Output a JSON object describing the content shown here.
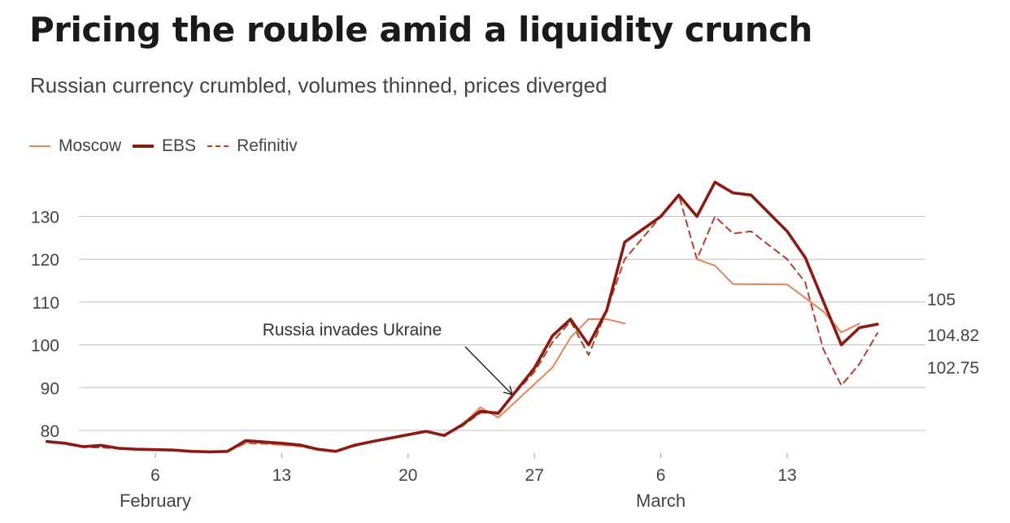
{
  "chart_data": {
    "type": "line",
    "title": "Pricing the rouble amid a liquidity crunch",
    "subtitle": "Russian currency crumbled, volumes thinned, prices diverged",
    "xlabel": "",
    "ylabel": "",
    "ylim": [
      73,
      140
    ],
    "yticks": [
      80,
      90,
      100,
      110,
      120,
      130
    ],
    "xrange": [
      -3,
      41
    ],
    "xticks": [
      {
        "x": 5,
        "label": "6"
      },
      {
        "x": 12,
        "label": "13"
      },
      {
        "x": 19,
        "label": "20"
      },
      {
        "x": 26,
        "label": "27"
      },
      {
        "x": 33,
        "label": "6"
      },
      {
        "x": 40,
        "label": "13"
      }
    ],
    "months": [
      {
        "x": 5,
        "label": "February"
      },
      {
        "x": 33,
        "label": "March"
      }
    ],
    "grid": true,
    "legend_position": "top-left",
    "series": [
      {
        "name": "Moscow",
        "style": "thin",
        "color": "#e8825a",
        "points": [
          [
            -1,
            77.4
          ],
          [
            0,
            77
          ],
          [
            1,
            76.2
          ],
          [
            2,
            76.4
          ],
          [
            3,
            75.8
          ],
          [
            4,
            75.6
          ],
          [
            5,
            75.5
          ],
          [
            6,
            75.4
          ],
          [
            7,
            75.1
          ],
          [
            8,
            75
          ],
          [
            9,
            75.1
          ],
          [
            10,
            77.2
          ],
          [
            11,
            77.1
          ],
          [
            12,
            76.6
          ],
          [
            13,
            76.4
          ],
          [
            14,
            75.6
          ],
          [
            15,
            75.2
          ],
          [
            16,
            76.4
          ],
          [
            17,
            77.3
          ],
          [
            18,
            78
          ],
          [
            19,
            78.9
          ],
          [
            20,
            79.8
          ],
          [
            21,
            78.8
          ],
          [
            22,
            81.2
          ],
          [
            23,
            85.4
          ],
          [
            24,
            83
          ],
          [
            27,
            94.7
          ],
          [
            28,
            101.7
          ],
          [
            29,
            106
          ],
          [
            30,
            106
          ],
          [
            31,
            105
          ]
        ],
        "points2": [
          [
            35,
            120
          ],
          [
            36,
            118.5
          ],
          [
            37,
            114.2
          ],
          [
            40,
            114.1
          ],
          [
            42,
            107.8
          ],
          [
            43,
            102.9
          ],
          [
            44,
            105
          ]
        ]
      },
      {
        "name": "EBS",
        "style": "thick",
        "color": "#8b1a10",
        "points": [
          [
            -1,
            77.4
          ],
          [
            0,
            77
          ],
          [
            1,
            76.2
          ],
          [
            2,
            76.5
          ],
          [
            3,
            75.8
          ],
          [
            4,
            75.6
          ],
          [
            5,
            75.5
          ],
          [
            6,
            75.4
          ],
          [
            7,
            75.1
          ],
          [
            8,
            75
          ],
          [
            9,
            75.1
          ],
          [
            10,
            77.6
          ],
          [
            11,
            77.3
          ],
          [
            12,
            77
          ],
          [
            13,
            76.6
          ],
          [
            14,
            75.6
          ],
          [
            15,
            75.1
          ],
          [
            16,
            76.5
          ],
          [
            17,
            77.4
          ],
          [
            18,
            78.2
          ],
          [
            19,
            79
          ],
          [
            20,
            79.8
          ],
          [
            21,
            78.8
          ],
          [
            22,
            81.3
          ],
          [
            23,
            84.5
          ],
          [
            24,
            84
          ],
          [
            26,
            94.6
          ],
          [
            27,
            102.1
          ],
          [
            28,
            106
          ],
          [
            29,
            100
          ],
          [
            30,
            108
          ],
          [
            31,
            124
          ],
          [
            33,
            130
          ],
          [
            34,
            135
          ],
          [
            35,
            130
          ],
          [
            36,
            138
          ],
          [
            37,
            135.5
          ],
          [
            38,
            135
          ],
          [
            40,
            126.5
          ],
          [
            41,
            120.4
          ],
          [
            43,
            100
          ],
          [
            44,
            104
          ],
          [
            45,
            104.82
          ]
        ]
      },
      {
        "name": "Refinitiv",
        "style": "dashed",
        "color": "#b3402c",
        "points": [
          [
            -1,
            77.4
          ],
          [
            0,
            77
          ],
          [
            1,
            76.1
          ],
          [
            2,
            76
          ],
          [
            3,
            75.8
          ],
          [
            4,
            75.5
          ],
          [
            5,
            75.5
          ],
          [
            6,
            75.3
          ],
          [
            7,
            75.1
          ],
          [
            8,
            75
          ],
          [
            9,
            75.1
          ],
          [
            10,
            77
          ],
          [
            11,
            76.9
          ],
          [
            12,
            76.6
          ],
          [
            13,
            76.3
          ],
          [
            14,
            75.5
          ],
          [
            15,
            75.1
          ],
          [
            16,
            76.3
          ],
          [
            17,
            77.3
          ],
          [
            18,
            78.1
          ],
          [
            19,
            79
          ],
          [
            20,
            79.8
          ],
          [
            21,
            78.8
          ],
          [
            22,
            81
          ],
          [
            23,
            84.1
          ],
          [
            24,
            84.3
          ],
          [
            26,
            93.7
          ],
          [
            27,
            100.6
          ],
          [
            28,
            105.5
          ],
          [
            29,
            97.6
          ],
          [
            30,
            108
          ],
          [
            31,
            120
          ],
          [
            34,
            135
          ],
          [
            35,
            120
          ],
          [
            36,
            130
          ],
          [
            37,
            126
          ],
          [
            38,
            126.5
          ],
          [
            40,
            120
          ],
          [
            41,
            114.6
          ],
          [
            42,
            99
          ],
          [
            43,
            90.5
          ],
          [
            44,
            95.5
          ],
          [
            45,
            102.75
          ]
        ]
      }
    ],
    "end_labels": [
      {
        "series": "Moscow",
        "label": "105",
        "value": 105
      },
      {
        "series": "EBS",
        "label": "104.82",
        "value": 104.82
      },
      {
        "series": "Refinitiv",
        "label": "102.75",
        "value": 102.75
      }
    ],
    "annotations": [
      {
        "text": "Russia invades Ukraine",
        "target_x": 23,
        "target_y": 84.5
      }
    ]
  }
}
